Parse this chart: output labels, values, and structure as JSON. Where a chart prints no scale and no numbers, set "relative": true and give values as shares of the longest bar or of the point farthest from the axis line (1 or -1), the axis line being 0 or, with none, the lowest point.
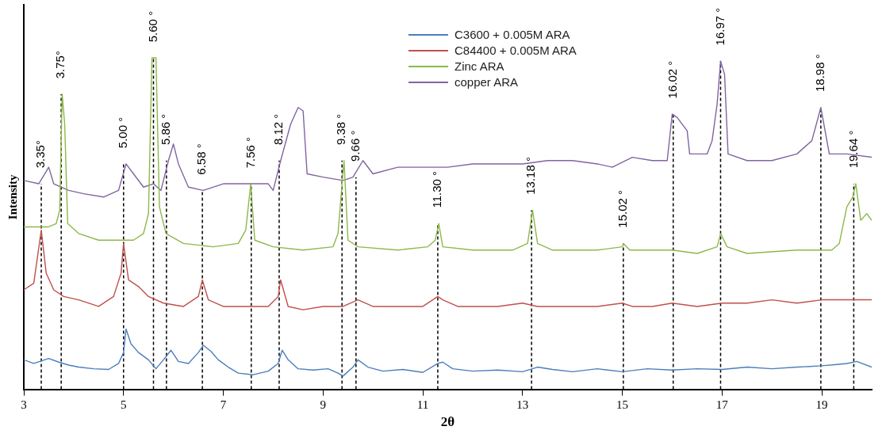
{
  "chart_data": {
    "type": "line",
    "relative": true,
    "xlabel": "2θ",
    "ylabel": "Intensity",
    "xlim": [
      3,
      20
    ],
    "xticks": [
      3,
      5,
      7,
      9,
      11,
      13,
      15,
      17,
      19
    ],
    "tick_labels": "x",
    "grid": false,
    "legend": "top",
    "marker": "none",
    "line_style": "solid",
    "series": [
      {
        "name": "C3600 + 0.005M ARA",
        "color": "#4a7ebb",
        "x": [
          3.0,
          3.2,
          3.5,
          3.7,
          3.9,
          4.1,
          4.4,
          4.7,
          4.9,
          5.0,
          5.05,
          5.15,
          5.3,
          5.5,
          5.65,
          5.8,
          5.95,
          6.1,
          6.3,
          6.5,
          6.6,
          6.75,
          6.9,
          7.1,
          7.3,
          7.6,
          7.9,
          8.1,
          8.18,
          8.3,
          8.5,
          8.8,
          9.1,
          9.3,
          9.4,
          9.6,
          9.7,
          9.9,
          10.2,
          10.6,
          11.0,
          11.3,
          11.4,
          11.6,
          12.0,
          12.5,
          13.0,
          13.3,
          13.6,
          14.0,
          14.5,
          15.0,
          15.5,
          16.0,
          16.5,
          17.0,
          17.5,
          18.0,
          18.5,
          19.0,
          19.3,
          19.5,
          19.7,
          20.0
        ],
        "values": [
          0.089,
          0.078,
          0.093,
          0.082,
          0.073,
          0.067,
          0.062,
          0.06,
          0.078,
          0.111,
          0.182,
          0.137,
          0.111,
          0.089,
          0.062,
          0.089,
          0.118,
          0.084,
          0.078,
          0.111,
          0.133,
          0.115,
          0.089,
          0.067,
          0.049,
          0.044,
          0.055,
          0.078,
          0.118,
          0.089,
          0.062,
          0.058,
          0.062,
          0.049,
          0.04,
          0.067,
          0.089,
          0.067,
          0.055,
          0.06,
          0.051,
          0.078,
          0.082,
          0.062,
          0.055,
          0.058,
          0.053,
          0.067,
          0.06,
          0.053,
          0.062,
          0.053,
          0.062,
          0.058,
          0.062,
          0.06,
          0.067,
          0.062,
          0.067,
          0.071,
          0.075,
          0.078,
          0.084,
          0.067
        ]
      },
      {
        "name": "C84400 + 0.005M ARA",
        "color": "#c0504d",
        "x": [
          3.0,
          3.2,
          3.35,
          3.45,
          3.6,
          3.8,
          4.1,
          4.5,
          4.8,
          4.95,
          5.0,
          5.1,
          5.3,
          5.5,
          5.8,
          6.2,
          6.5,
          6.58,
          6.7,
          7.0,
          7.5,
          7.9,
          8.1,
          8.15,
          8.3,
          8.6,
          9.0,
          9.4,
          9.7,
          10.0,
          10.5,
          11.0,
          11.3,
          11.4,
          11.7,
          12.0,
          12.5,
          13.0,
          13.3,
          13.6,
          14.0,
          14.5,
          15.0,
          15.2,
          15.6,
          16.0,
          16.5,
          17.0,
          17.5,
          18.0,
          18.5,
          19.0,
          19.3,
          19.6,
          20.0
        ],
        "values": [
          0.3,
          0.32,
          0.48,
          0.35,
          0.3,
          0.28,
          0.27,
          0.25,
          0.28,
          0.35,
          0.44,
          0.33,
          0.31,
          0.28,
          0.26,
          0.25,
          0.28,
          0.33,
          0.27,
          0.25,
          0.25,
          0.25,
          0.28,
          0.33,
          0.25,
          0.24,
          0.25,
          0.25,
          0.27,
          0.25,
          0.25,
          0.25,
          0.28,
          0.27,
          0.25,
          0.25,
          0.25,
          0.26,
          0.25,
          0.25,
          0.25,
          0.25,
          0.26,
          0.25,
          0.25,
          0.26,
          0.25,
          0.26,
          0.26,
          0.27,
          0.26,
          0.27,
          0.27,
          0.27,
          0.27
        ]
      },
      {
        "name": "Zinc ARA",
        "color": "#8db84a",
        "x": [
          3.0,
          3.5,
          3.65,
          3.72,
          3.77,
          3.82,
          3.88,
          4.1,
          4.5,
          5.0,
          5.2,
          5.4,
          5.5,
          5.57,
          5.65,
          5.72,
          5.85,
          6.2,
          6.8,
          7.3,
          7.45,
          7.55,
          7.63,
          8.0,
          8.6,
          9.2,
          9.3,
          9.42,
          9.5,
          9.7,
          10.5,
          11.1,
          11.25,
          11.32,
          11.4,
          12.0,
          12.8,
          13.1,
          13.2,
          13.3,
          13.6,
          14.5,
          15.0,
          15.02,
          15.15,
          16.0,
          16.5,
          16.9,
          16.97,
          17.1,
          17.5,
          18.5,
          18.9,
          19.2,
          19.35,
          19.5,
          19.62,
          19.68,
          19.78,
          19.9,
          20.0
        ],
        "values": [
          0.49,
          0.49,
          0.5,
          0.54,
          0.89,
          0.8,
          0.5,
          0.47,
          0.45,
          0.45,
          0.45,
          0.47,
          0.53,
          1.0,
          1.0,
          0.55,
          0.47,
          0.44,
          0.43,
          0.44,
          0.48,
          0.62,
          0.45,
          0.43,
          0.42,
          0.43,
          0.47,
          0.69,
          0.45,
          0.43,
          0.42,
          0.43,
          0.45,
          0.5,
          0.43,
          0.42,
          0.42,
          0.44,
          0.54,
          0.44,
          0.42,
          0.42,
          0.43,
          0.44,
          0.42,
          0.42,
          0.41,
          0.43,
          0.47,
          0.43,
          0.41,
          0.42,
          0.42,
          0.42,
          0.44,
          0.55,
          0.58,
          0.62,
          0.51,
          0.53,
          0.51
        ]
      },
      {
        "name": "copper ARA",
        "color": "#8064a2",
        "x": [
          3.0,
          3.3,
          3.5,
          3.6,
          3.9,
          4.2,
          4.6,
          4.9,
          5.05,
          5.2,
          5.4,
          5.6,
          5.75,
          5.9,
          6.0,
          6.1,
          6.3,
          6.6,
          7.0,
          7.5,
          7.9,
          8.0,
          8.15,
          8.35,
          8.5,
          8.6,
          8.68,
          9.0,
          9.4,
          9.6,
          9.8,
          10.0,
          10.5,
          11.0,
          11.5,
          12.0,
          12.5,
          13.0,
          13.5,
          14.0,
          14.5,
          14.8,
          15.2,
          15.6,
          15.9,
          16.0,
          16.1,
          16.3,
          16.35,
          16.7,
          16.8,
          16.9,
          16.97,
          17.05,
          17.12,
          17.5,
          18.0,
          18.5,
          18.8,
          18.98,
          19.15,
          19.5,
          20.0
        ],
        "values": [
          0.63,
          0.62,
          0.67,
          0.62,
          0.6,
          0.59,
          0.58,
          0.6,
          0.68,
          0.65,
          0.61,
          0.62,
          0.6,
          0.69,
          0.74,
          0.68,
          0.61,
          0.6,
          0.62,
          0.62,
          0.62,
          0.6,
          0.69,
          0.8,
          0.85,
          0.84,
          0.65,
          0.64,
          0.63,
          0.64,
          0.69,
          0.65,
          0.67,
          0.67,
          0.67,
          0.68,
          0.68,
          0.68,
          0.69,
          0.69,
          0.68,
          0.67,
          0.7,
          0.69,
          0.69,
          0.83,
          0.82,
          0.78,
          0.71,
          0.71,
          0.75,
          0.86,
          0.99,
          0.95,
          0.71,
          0.69,
          0.69,
          0.71,
          0.75,
          0.85,
          0.71,
          0.71,
          0.7
        ]
      }
    ],
    "ref_lines": [
      {
        "axis": "x",
        "value": 3.35,
        "label": "3.35°",
        "line_style": "dashed",
        "color": "#000000"
      },
      {
        "axis": "x",
        "value": 3.75,
        "label": "3.75°",
        "line_style": "dashed",
        "color": "#000000"
      },
      {
        "axis": "x",
        "value": 5.0,
        "label": "5.00 °",
        "line_style": "dashed",
        "color": "#000000"
      },
      {
        "axis": "x",
        "value": 5.6,
        "label": "5.60 °",
        "line_style": "dashed",
        "color": "#000000"
      },
      {
        "axis": "x",
        "value": 5.86,
        "label": "5.86 °",
        "line_style": "dashed",
        "color": "#000000"
      },
      {
        "axis": "x",
        "value": 6.58,
        "label": "6.58 °",
        "line_style": "dashed",
        "color": "#000000"
      },
      {
        "axis": "x",
        "value": 7.56,
        "label": "7.56 °",
        "line_style": "dashed",
        "color": "#000000"
      },
      {
        "axis": "x",
        "value": 8.12,
        "label": "8.12 °",
        "line_style": "dashed",
        "color": "#000000"
      },
      {
        "axis": "x",
        "value": 9.38,
        "label": "9.38 °",
        "line_style": "dashed",
        "color": "#000000"
      },
      {
        "axis": "x",
        "value": 9.66,
        "label": "9.66 °",
        "line_style": "dashed",
        "color": "#000000"
      },
      {
        "axis": "x",
        "value": 11.3,
        "label": "11.30 °",
        "line_style": "dashed",
        "color": "#000000"
      },
      {
        "axis": "x",
        "value": 13.18,
        "label": "13.18 °",
        "line_style": "dashed",
        "color": "#000000"
      },
      {
        "axis": "x",
        "value": 15.02,
        "label": "15.02 °",
        "line_style": "dashed",
        "color": "#000000"
      },
      {
        "axis": "x",
        "value": 16.02,
        "label": "16.02 °",
        "line_style": "dashed",
        "color": "#000000"
      },
      {
        "axis": "x",
        "value": 16.97,
        "label": "16.97 °",
        "line_style": "dashed",
        "color": "#000000"
      },
      {
        "axis": "x",
        "value": 18.98,
        "label": "18.98 °",
        "line_style": "dashed",
        "color": "#000000"
      },
      {
        "axis": "x",
        "value": 19.64,
        "label": "19.64 °",
        "line_style": "dashed",
        "color": "#000000"
      }
    ]
  }
}
